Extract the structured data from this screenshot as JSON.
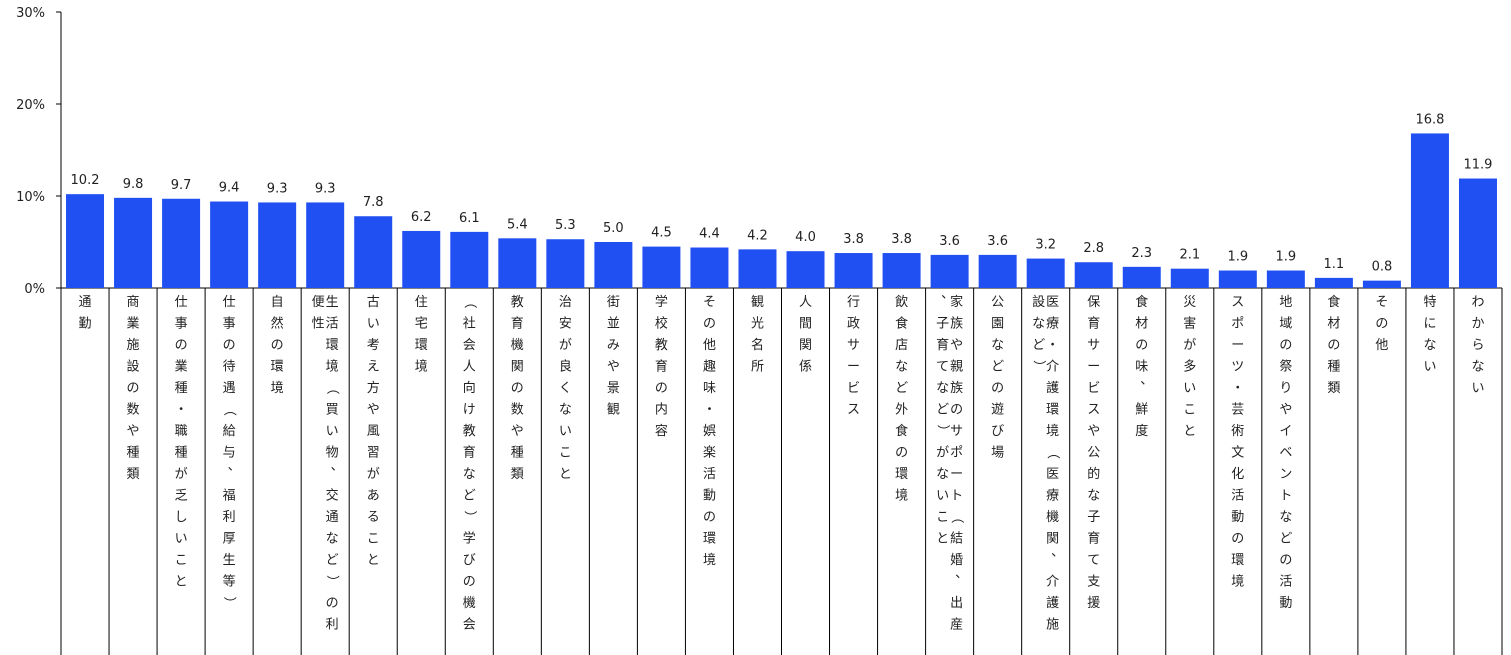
{
  "chart_data": {
    "type": "bar",
    "title": "",
    "xlabel": "",
    "ylabel": "",
    "ylim": [
      0,
      30
    ],
    "yticks": [
      "0%",
      "10%",
      "20%",
      "30%"
    ],
    "ytick_values": [
      0,
      10,
      20,
      30
    ],
    "grid": false,
    "bar_color": "#2150f2",
    "categories": [
      "通勤",
      "商業施設の数や種類",
      "仕事の業種・職種が乏しいこと",
      "仕事の待遇（給与、福利厚生等）",
      "自然の環境",
      "生活環境（買い物、交通など）の利便性",
      "古い考え方や風習があること",
      "住宅環境",
      "（社会人向け教育など）学びの機会",
      "教育機関の数や種類",
      "治安が良くないこと",
      "街並みや景観",
      "学校教育の内容",
      "その他趣味・娯楽活動の環境",
      "観光名所",
      "人間関係",
      "行政サービス",
      "飲食店など外食の環境",
      "家族や親族のサポート（結婚、出産、子育てなど）がないこと",
      "公園などの遊び場",
      "医療・介護環境（医療機関、介護施設など）",
      "保育サービスや公的な子育て支援",
      "食材の味、鮮度",
      "災害が多いこと",
      "スポーツ・芸術文化活動の環境",
      "地域の祭りやイベントなどの活動",
      "食材の種類",
      "その他",
      "特にない",
      "わからない"
    ],
    "values": [
      10.2,
      9.8,
      9.7,
      9.4,
      9.3,
      9.3,
      7.8,
      6.2,
      6.1,
      5.4,
      5.3,
      5.0,
      4.5,
      4.4,
      4.2,
      4.0,
      3.8,
      3.8,
      3.6,
      3.6,
      3.2,
      2.8,
      2.3,
      2.1,
      1.9,
      1.9,
      1.1,
      0.8,
      16.8,
      11.9
    ],
    "value_labels": [
      "10.2",
      "9.8",
      "9.7",
      "9.4",
      "9.3",
      "9.3",
      "7.8",
      "6.2",
      "6.1",
      "5.4",
      "5.3",
      "5.0",
      "4.5",
      "4.4",
      "4.2",
      "4.0",
      "3.8",
      "3.8",
      "3.6",
      "3.6",
      "3.2",
      "2.8",
      "2.3",
      "2.1",
      "1.9",
      "1.9",
      "1.1",
      "0.8",
      "16.8",
      "11.9"
    ]
  }
}
